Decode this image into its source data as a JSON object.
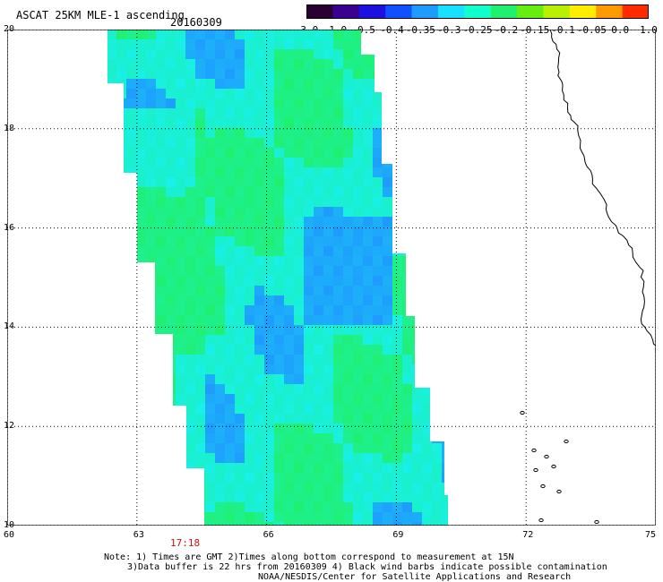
{
  "header": {
    "title": "ASCAT 25KM MLE-1 ascending",
    "date": "20160309"
  },
  "colorbar": {
    "labels": [
      "-3.0",
      "-1.0",
      "-0.5",
      "-0.4",
      "-0.35",
      "-0.3",
      "-0.25",
      "-0.2",
      "-0.15",
      "-0.1",
      "-0.05",
      "0.0",
      "1.0"
    ],
    "colors": [
      "#2a0033",
      "#3a0090",
      "#1c10e0",
      "#0f50ff",
      "#1e9bff",
      "#18e0ff",
      "#10ffcc",
      "#20f070",
      "#66ee11",
      "#b8f000",
      "#ffee00",
      "#ff9900",
      "#ff2a00"
    ]
  },
  "map": {
    "y_labels": [
      "20",
      "18",
      "16",
      "14",
      "12",
      "10"
    ],
    "x_labels": [
      "60",
      "63",
      "66",
      "69",
      "72",
      "75"
    ],
    "grid": true,
    "swath_colors": {
      "cyan": "#18f0e8",
      "green": "#20f070",
      "blue": "#1e9bff"
    },
    "coastline_color": "#000000"
  },
  "time_label": "17:18",
  "notes": [
    "Note: 1) Times are GMT 2)Times along bottom correspond to measurement at 15N",
    "3)Data buffer is 22 hrs from 20160309 4) Black wind barbs indicate possible contamination",
    "NOAA/NESDIS/Center for Satellite Applications and Research"
  ]
}
